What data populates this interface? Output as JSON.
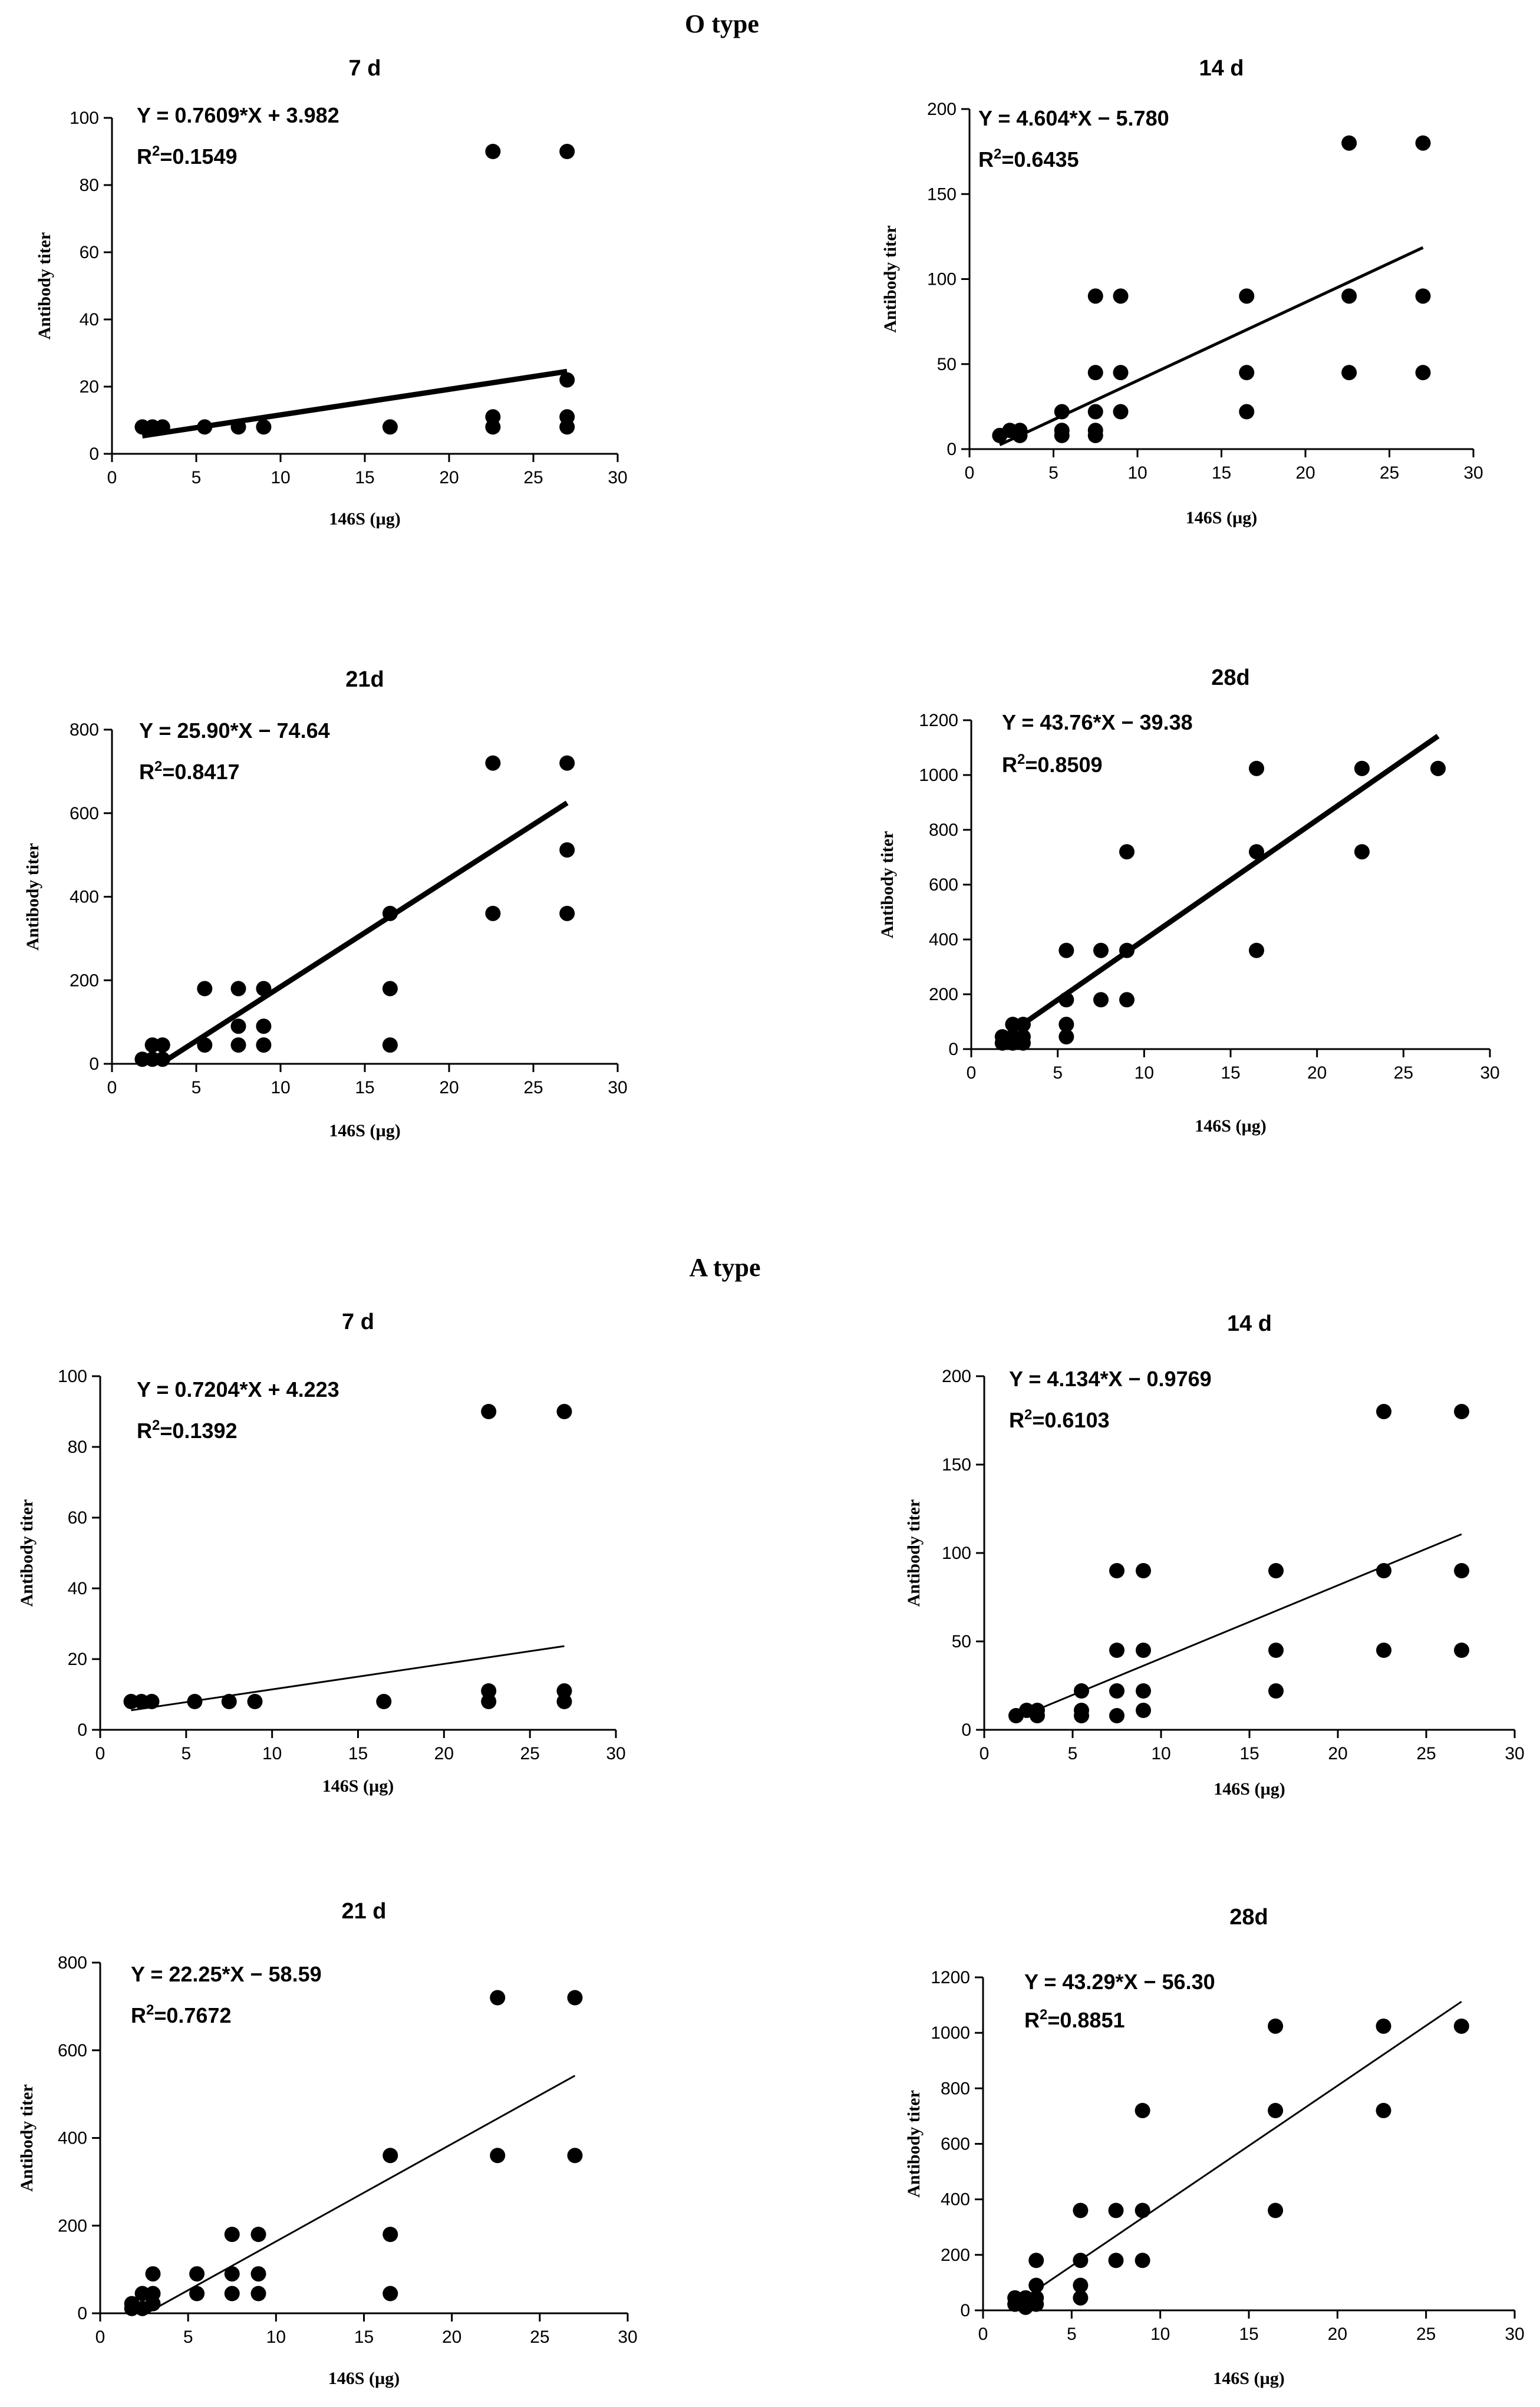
{
  "sections": [
    {
      "title": "O type"
    },
    {
      "title": "A type"
    }
  ],
  "chart_data": [
    {
      "type": "scatter",
      "group": "O type",
      "title": "7 d",
      "xlabel": "146S (µg)",
      "ylabel": "Antibody titer",
      "xlim": [
        0,
        30
      ],
      "ylim": [
        0,
        100
      ],
      "xticks": [
        0,
        5,
        10,
        15,
        20,
        25,
        30
      ],
      "yticks": [
        0,
        20,
        40,
        60,
        80,
        100
      ],
      "equation": "Y = 0.7609*X + 3.982",
      "r2_label": "R",
      "r2_value": "=0.1549",
      "fit": {
        "slope": 0.7609,
        "intercept": 3.982,
        "x_range": [
          1.8,
          27
        ]
      },
      "points": [
        [
          1.8,
          8
        ],
        [
          2.4,
          8
        ],
        [
          3,
          8
        ],
        [
          5.5,
          8
        ],
        [
          7.5,
          8
        ],
        [
          9,
          8
        ],
        [
          16.5,
          8
        ],
        [
          22.6,
          8
        ],
        [
          22.6,
          11
        ],
        [
          22.6,
          90
        ],
        [
          27,
          8
        ],
        [
          27,
          11
        ],
        [
          27,
          22
        ],
        [
          27,
          90
        ]
      ]
    },
    {
      "type": "scatter",
      "group": "O type",
      "title": "14 d",
      "xlabel": "146S (µg)",
      "ylabel": "Antibody titer",
      "xlim": [
        0,
        30
      ],
      "ylim": [
        0,
        200
      ],
      "xticks": [
        0,
        5,
        10,
        15,
        20,
        25,
        30
      ],
      "yticks": [
        0,
        50,
        100,
        150,
        200
      ],
      "equation": "Y = 4.604*X − 5.780",
      "r2_label": "R",
      "r2_value": "=0.6435",
      "fit": {
        "slope": 4.604,
        "intercept": -5.78,
        "x_range": [
          1.8,
          27
        ]
      },
      "points": [
        [
          1.8,
          8
        ],
        [
          2.4,
          11
        ],
        [
          3,
          11
        ],
        [
          3,
          8
        ],
        [
          5.5,
          22
        ],
        [
          5.5,
          11
        ],
        [
          5.5,
          8
        ],
        [
          7.5,
          90
        ],
        [
          7.5,
          45
        ],
        [
          7.5,
          22
        ],
        [
          7.5,
          11
        ],
        [
          7.5,
          8
        ],
        [
          9,
          90
        ],
        [
          9,
          45
        ],
        [
          9,
          22
        ],
        [
          16.5,
          90
        ],
        [
          16.5,
          45
        ],
        [
          16.5,
          22
        ],
        [
          22.6,
          180
        ],
        [
          22.6,
          90
        ],
        [
          22.6,
          45
        ],
        [
          27,
          180
        ],
        [
          27,
          90
        ],
        [
          27,
          45
        ]
      ]
    },
    {
      "type": "scatter",
      "group": "O type",
      "title": "21d",
      "xlabel": "146S (µg)",
      "ylabel": "Antibody titer",
      "xlim": [
        0,
        30
      ],
      "ylim": [
        0,
        800
      ],
      "xticks": [
        0,
        5,
        10,
        15,
        20,
        25,
        30
      ],
      "yticks": [
        0,
        200,
        400,
        600,
        800
      ],
      "equation": "Y = 25.90*X − 74.64",
      "r2_label": "R",
      "r2_value": "=0.8417",
      "fit": {
        "slope": 25.9,
        "intercept": -74.64,
        "x_range": [
          2.9,
          27
        ]
      },
      "points": [
        [
          1.8,
          11
        ],
        [
          2.4,
          45
        ],
        [
          2.4,
          11
        ],
        [
          3,
          45
        ],
        [
          3,
          11
        ],
        [
          5.5,
          180
        ],
        [
          5.5,
          45
        ],
        [
          7.5,
          180
        ],
        [
          7.5,
          90
        ],
        [
          7.5,
          45
        ],
        [
          9,
          180
        ],
        [
          9,
          90
        ],
        [
          9,
          45
        ],
        [
          16.5,
          360
        ],
        [
          16.5,
          180
        ],
        [
          16.5,
          45
        ],
        [
          22.6,
          720
        ],
        [
          22.6,
          360
        ],
        [
          27,
          720
        ],
        [
          27,
          512
        ],
        [
          27,
          360
        ]
      ]
    },
    {
      "type": "scatter",
      "group": "O type",
      "title": "28d",
      "xlabel": "146S (µg)",
      "ylabel": "Antibody titer",
      "xlim": [
        0,
        30
      ],
      "ylim": [
        0,
        1200
      ],
      "xticks": [
        0,
        5,
        10,
        15,
        20,
        25,
        30
      ],
      "yticks": [
        0,
        200,
        400,
        600,
        800,
        1000,
        1200
      ],
      "equation": "Y = 43.76*X − 39.38",
      "r2_label": "R",
      "r2_value": "=0.8509",
      "fit": {
        "slope": 43.76,
        "intercept": -39.38,
        "x_range": [
          1.8,
          27
        ]
      },
      "points": [
        [
          1.8,
          45
        ],
        [
          1.8,
          22
        ],
        [
          2.4,
          90
        ],
        [
          2.4,
          45
        ],
        [
          2.4,
          22
        ],
        [
          3,
          90
        ],
        [
          3,
          45
        ],
        [
          3,
          22
        ],
        [
          5.5,
          360
        ],
        [
          5.5,
          180
        ],
        [
          5.5,
          90
        ],
        [
          5.5,
          45
        ],
        [
          7.5,
          360
        ],
        [
          7.5,
          180
        ],
        [
          9,
          720
        ],
        [
          9,
          360
        ],
        [
          9,
          180
        ],
        [
          16.5,
          1024
        ],
        [
          16.5,
          720
        ],
        [
          16.5,
          360
        ],
        [
          22.6,
          1024
        ],
        [
          22.6,
          720
        ],
        [
          27,
          1024
        ]
      ]
    },
    {
      "type": "scatter",
      "group": "A type",
      "title": "7 d",
      "xlabel": "146S (µg)",
      "ylabel": "Antibody titer",
      "xlim": [
        0,
        30
      ],
      "ylim": [
        0,
        100
      ],
      "xticks": [
        0,
        5,
        10,
        15,
        20,
        25,
        30
      ],
      "yticks": [
        0,
        20,
        40,
        60,
        80,
        100
      ],
      "equation": "Y = 0.7204*X + 4.223",
      "r2_label": "R",
      "r2_value": "=0.1392",
      "fit": {
        "slope": 0.7204,
        "intercept": 4.223,
        "x_range": [
          1.8,
          27
        ]
      },
      "points": [
        [
          1.8,
          8
        ],
        [
          2.4,
          8
        ],
        [
          3,
          8
        ],
        [
          5.5,
          8
        ],
        [
          7.5,
          8
        ],
        [
          9,
          8
        ],
        [
          16.5,
          8
        ],
        [
          22.6,
          8
        ],
        [
          22.6,
          11
        ],
        [
          22.6,
          90
        ],
        [
          27,
          8
        ],
        [
          27,
          11
        ],
        [
          27,
          90
        ]
      ]
    },
    {
      "type": "scatter",
      "group": "A type",
      "title": "14 d",
      "xlabel": "146S (µg)",
      "ylabel": "Antibody titer",
      "xlim": [
        0,
        30
      ],
      "ylim": [
        0,
        200
      ],
      "xticks": [
        0,
        5,
        10,
        15,
        20,
        25,
        30
      ],
      "yticks": [
        0,
        50,
        100,
        150,
        200
      ],
      "equation": "Y = 4.134*X − 0.9769",
      "r2_label": "R",
      "r2_value": "=0.6103",
      "fit": {
        "slope": 4.134,
        "intercept": -0.9769,
        "x_range": [
          1.8,
          27
        ]
      },
      "points": [
        [
          1.8,
          8
        ],
        [
          2.4,
          11
        ],
        [
          3,
          11
        ],
        [
          3,
          8
        ],
        [
          5.5,
          22
        ],
        [
          5.5,
          11
        ],
        [
          5.5,
          8
        ],
        [
          7.5,
          90
        ],
        [
          7.5,
          45
        ],
        [
          7.5,
          22
        ],
        [
          7.5,
          8
        ],
        [
          9,
          90
        ],
        [
          9,
          45
        ],
        [
          9,
          22
        ],
        [
          9,
          11
        ],
        [
          16.5,
          90
        ],
        [
          16.5,
          45
        ],
        [
          16.5,
          22
        ],
        [
          22.6,
          180
        ],
        [
          22.6,
          90
        ],
        [
          22.6,
          45
        ],
        [
          27,
          180
        ],
        [
          27,
          90
        ],
        [
          27,
          45
        ]
      ]
    },
    {
      "type": "scatter",
      "group": "A type",
      "title": "21 d",
      "xlabel": "146S (µg)",
      "ylabel": "Antibody titer",
      "xlim": [
        0,
        30
      ],
      "ylim": [
        0,
        800
      ],
      "xticks": [
        0,
        5,
        10,
        15,
        20,
        25,
        30
      ],
      "yticks": [
        0,
        200,
        400,
        600,
        800
      ],
      "equation": "Y = 22.25*X − 58.59",
      "r2_label": "R",
      "r2_value": "=0.7672",
      "fit": {
        "slope": 22.25,
        "intercept": -58.59,
        "x_range": [
          2.6,
          27
        ]
      },
      "points": [
        [
          1.8,
          22
        ],
        [
          1.8,
          11
        ],
        [
          2.4,
          45
        ],
        [
          2.4,
          11
        ],
        [
          3,
          90
        ],
        [
          3,
          45
        ],
        [
          3,
          22
        ],
        [
          5.5,
          90
        ],
        [
          5.5,
          45
        ],
        [
          7.5,
          180
        ],
        [
          7.5,
          90
        ],
        [
          7.5,
          45
        ],
        [
          9,
          180
        ],
        [
          9,
          90
        ],
        [
          9,
          45
        ],
        [
          16.5,
          360
        ],
        [
          16.5,
          180
        ],
        [
          16.5,
          45
        ],
        [
          22.6,
          720
        ],
        [
          22.6,
          360
        ],
        [
          27,
          720
        ],
        [
          27,
          360
        ]
      ]
    },
    {
      "type": "scatter",
      "group": "A type",
      "title": "28d",
      "xlabel": "146S (µg)",
      "ylabel": "Antibody titer",
      "xlim": [
        0,
        30
      ],
      "ylim": [
        0,
        1200
      ],
      "xticks": [
        0,
        5,
        10,
        15,
        20,
        25,
        30
      ],
      "yticks": [
        0,
        200,
        400,
        600,
        800,
        1000,
        1200
      ],
      "equation": "Y = 43.29*X − 56.30",
      "r2_label": "R",
      "r2_value": "=0.8851",
      "fit": {
        "slope": 43.29,
        "intercept": -56.3,
        "x_range": [
          1.8,
          27
        ]
      },
      "points": [
        [
          1.8,
          45
        ],
        [
          1.8,
          22
        ],
        [
          2.4,
          45
        ],
        [
          2.4,
          22
        ],
        [
          2.4,
          11
        ],
        [
          3,
          180
        ],
        [
          3,
          90
        ],
        [
          3,
          45
        ],
        [
          3,
          22
        ],
        [
          5.5,
          360
        ],
        [
          5.5,
          180
        ],
        [
          5.5,
          90
        ],
        [
          5.5,
          45
        ],
        [
          7.5,
          360
        ],
        [
          7.5,
          180
        ],
        [
          9,
          720
        ],
        [
          9,
          360
        ],
        [
          9,
          180
        ],
        [
          16.5,
          1024
        ],
        [
          16.5,
          720
        ],
        [
          16.5,
          360
        ],
        [
          22.6,
          1024
        ],
        [
          22.6,
          720
        ],
        [
          27,
          1024
        ]
      ]
    }
  ]
}
